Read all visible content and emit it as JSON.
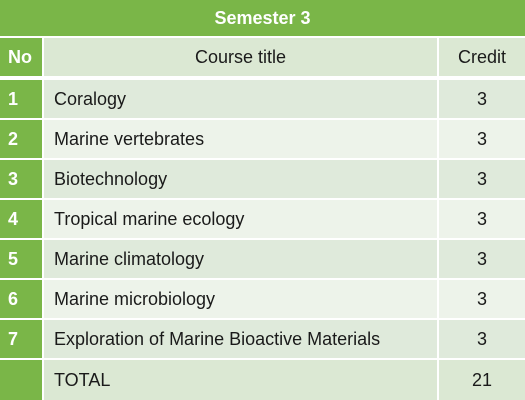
{
  "table": {
    "title": "Semester 3",
    "headers": {
      "no": "No",
      "course_title": "Course title",
      "credit": "Credit"
    },
    "rows": [
      {
        "no": "1",
        "course_title": "Coralogy",
        "credit": "3"
      },
      {
        "no": "2",
        "course_title": "Marine vertebrates",
        "credit": "3"
      },
      {
        "no": "3",
        "course_title": "Biotechnology",
        "credit": "3"
      },
      {
        "no": "4",
        "course_title": "Tropical marine ecology",
        "credit": "3"
      },
      {
        "no": "5",
        "course_title": "Marine climatology",
        "credit": "3"
      },
      {
        "no": "6",
        "course_title": "Marine microbiology",
        "credit": "3"
      },
      {
        "no": "7",
        "course_title": "Exploration of Marine Bioactive Materials",
        "credit": "3"
      }
    ],
    "total": {
      "no": "",
      "label": "TOTAL",
      "credit": "21"
    }
  },
  "colors": {
    "header_green": "#7ab648",
    "row_light": "#edf3ea",
    "row_mid": "#dfeadb"
  }
}
